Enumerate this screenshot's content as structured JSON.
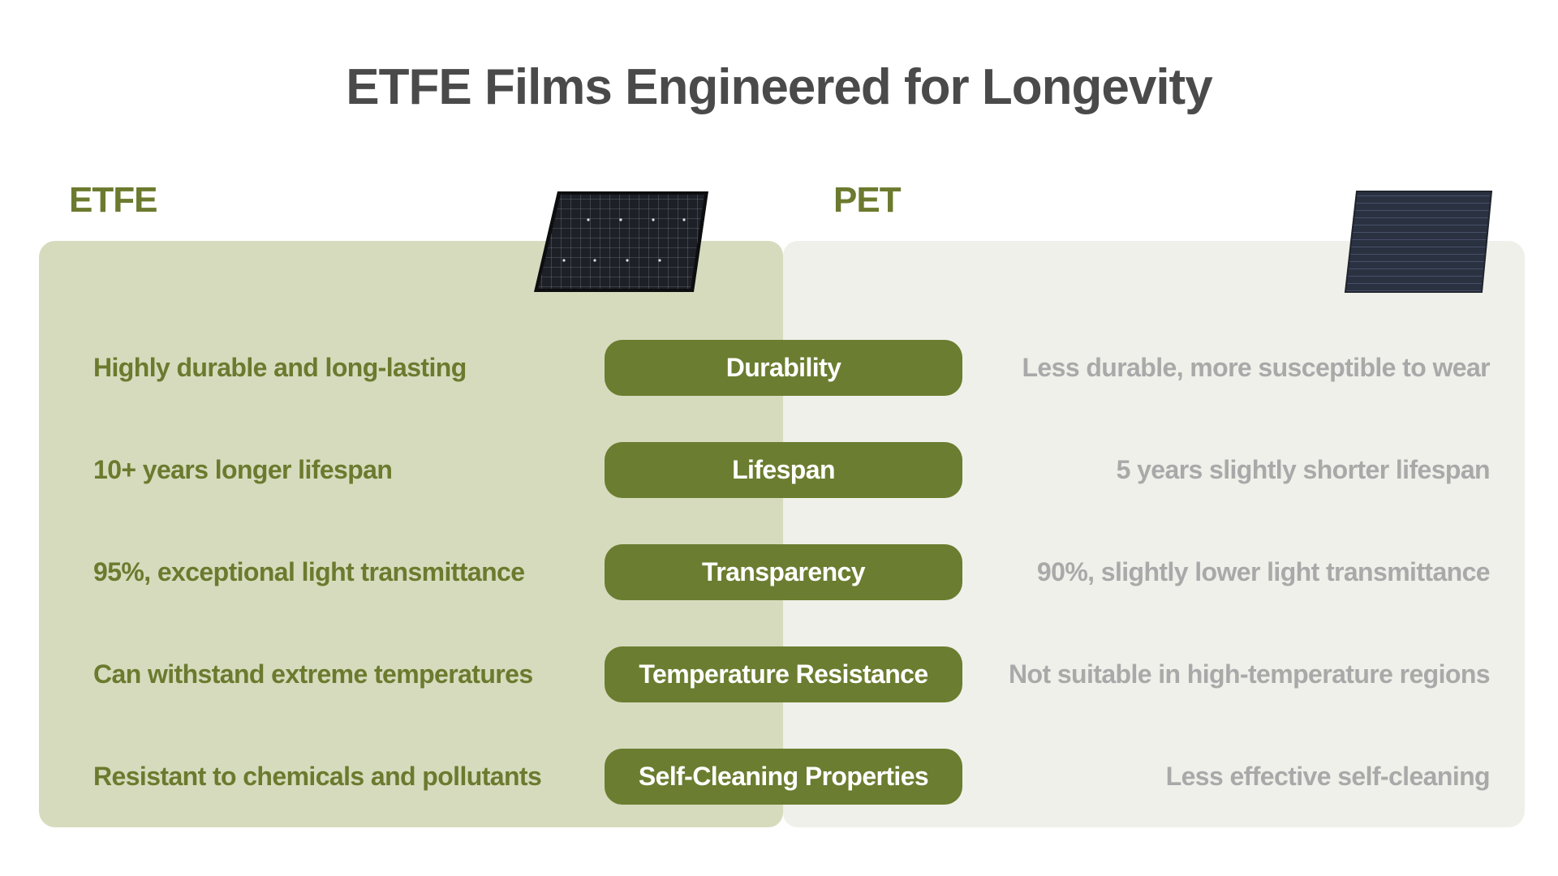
{
  "title": "ETFE Films Engineered for Longevity",
  "colors": {
    "accent_green": "#6b7a2e",
    "pill_green": "#6b7d30",
    "etfe_panel_bg": "#d6dbbd",
    "pet_panel_bg": "#eff0ea",
    "pet_text": "#a9a9a9",
    "title_text": "#4a4a4a"
  },
  "columns": {
    "left": {
      "label": "ETFE",
      "image_icon": "solar-panel-grid-icon"
    },
    "right": {
      "label": "PET",
      "image_icon": "solar-panel-striped-icon"
    }
  },
  "rows": [
    {
      "feature": "Durability",
      "etfe": "Highly durable and long-lasting",
      "pet": "Less durable, more susceptible to wear"
    },
    {
      "feature": "Lifespan",
      "etfe": "10+ years longer lifespan",
      "pet": "5 years slightly shorter lifespan"
    },
    {
      "feature": "Transparency",
      "etfe": "95%, exceptional light transmittance",
      "pet": "90%, slightly lower light transmittance"
    },
    {
      "feature": "Temperature Resistance",
      "etfe": "Can withstand extreme temperatures",
      "pet": "Not suitable in high-temperature regions"
    },
    {
      "feature": "Self-Cleaning Properties",
      "etfe": "Resistant to chemicals and pollutants",
      "pet": "Less effective self-cleaning"
    }
  ]
}
